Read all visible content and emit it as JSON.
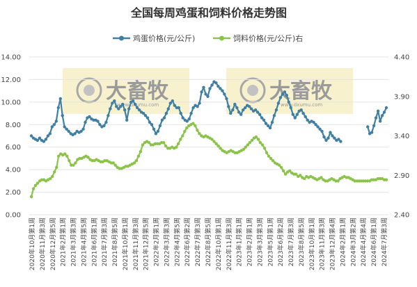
{
  "chart_data": {
    "type": "line",
    "title": "全国每周鸡蛋和饲料价格走势图",
    "left_axis": {
      "ylim": [
        0,
        14
      ],
      "ticks": [
        "0.00",
        "2.00",
        "4.00",
        "6.00",
        "8.00",
        "10.00",
        "12.00",
        "14.00"
      ]
    },
    "right_axis": {
      "ylim": [
        2.4,
        4.4
      ],
      "ticks": [
        "2.40",
        "2.90",
        "3.40",
        "3.90",
        "4.40"
      ]
    },
    "x_tick_labels": [
      "2020年10月第1周",
      "2020年11月第3周",
      "2020年12月第5周",
      "2021年2月第1周",
      "2021年3月第3周",
      "2021年4月第5周",
      "2021年6月第1周",
      "2021年7月第3周",
      "2021年8月第5周",
      "2021年10月第1周",
      "2021年11月第3周",
      "2021年12月第5周",
      "2022年2月第1周",
      "2022年3月第3周",
      "2022年4月第5周",
      "2022年6月第2周",
      "2022年7月第3周",
      "2022年8月第5周",
      "2022年10月第1周",
      "2022年11月第3周",
      "2023年1月第1周",
      "2023年2月第1周",
      "2023年3月第3周",
      "2023年5月第1周",
      "2023年6月第2周",
      "2023年7月第3周",
      "2023年8月第5周",
      "2023年10月第1周",
      "2023年11月第3周",
      "2023年12月第4周",
      "2024年2月第1周",
      "2024年3月第2周",
      "2024年4月第4周",
      "2024年6月第1周",
      "2024年7月第3周"
    ],
    "grid": true,
    "legend_position": "top",
    "series": [
      {
        "name": "鸡蛋价格(元/公斤)",
        "axis": "left",
        "color": "#3f7fa3",
        "values": [
          7.0,
          6.8,
          6.7,
          6.6,
          6.8,
          6.6,
          6.5,
          6.7,
          7.0,
          7.2,
          7.8,
          8.0,
          8.3,
          9.5,
          10.3,
          8.8,
          7.8,
          7.6,
          7.4,
          7.2,
          7.1,
          7.2,
          7.4,
          7.3,
          7.4,
          7.6,
          8.2,
          8.6,
          8.7,
          8.5,
          8.4,
          8.4,
          8.3,
          8.0,
          7.8,
          7.9,
          8.2,
          8.8,
          9.4,
          9.9,
          10.1,
          9.6,
          9.4,
          9.6,
          9.8,
          9.3,
          8.4,
          9.4,
          10.0,
          10.1,
          9.8,
          9.5,
          9.3,
          9.1,
          9.0,
          8.8,
          8.6,
          8.2,
          8.0,
          7.6,
          7.2,
          7.4,
          7.9,
          8.4,
          8.6,
          9.0,
          9.4,
          9.9,
          10.1,
          9.7,
          9.5,
          9.5,
          9.0,
          8.6,
          8.4,
          8.3,
          8.5,
          9.0,
          9.5,
          9.7,
          9.6,
          9.9,
          10.9,
          11.3,
          10.7,
          10.5,
          11.2,
          11.5,
          11.8,
          11.7,
          11.4,
          11.2,
          11.0,
          10.7,
          10.3,
          9.6,
          9.0,
          9.3,
          9.8,
          9.5,
          9.1,
          8.9,
          9.3,
          9.5,
          9.7,
          9.6,
          9.4,
          9.2,
          9.3,
          9.1,
          8.9,
          8.6,
          8.4,
          8.1,
          7.9,
          7.7,
          8.2,
          8.8,
          9.3,
          9.9,
          10.4,
          10.7,
          10.9,
          10.6,
          10.0,
          9.5,
          8.9,
          8.6,
          8.9,
          9.2,
          9.3,
          9.0,
          8.7,
          8.4,
          8.2,
          8.3,
          8.2,
          8.0,
          7.8,
          7.6,
          7.4,
          6.9,
          6.6,
          6.8,
          7.3,
          7.0,
          6.8,
          6.6,
          6.7,
          6.5,
          null,
          null,
          null,
          null,
          null,
          null,
          null,
          null,
          null,
          null,
          null,
          null,
          7.8,
          7.2,
          7.3,
          7.9,
          8.6,
          9.2,
          8.3,
          8.8,
          9.1,
          9.5
        ],
        "marker": "circle"
      },
      {
        "name": "饲料价格(元/公斤)右",
        "axis": "left",
        "color": "#8bc34a",
        "values": [
          1.6,
          2.3,
          2.6,
          2.8,
          3.0,
          3.1,
          3.1,
          3.0,
          3.1,
          3.2,
          3.4,
          3.8,
          4.2,
          5.2,
          5.4,
          5.3,
          5.4,
          5.2,
          4.8,
          4.4,
          4.4,
          4.6,
          4.9,
          5.0,
          5.0,
          5.1,
          5.2,
          5.1,
          4.9,
          4.8,
          4.8,
          4.9,
          4.8,
          4.7,
          4.7,
          4.8,
          4.8,
          4.7,
          4.6,
          4.6,
          4.4,
          4.2,
          4.1,
          4.1,
          4.2,
          4.3,
          4.3,
          4.4,
          4.5,
          4.6,
          4.8,
          5.2,
          5.6,
          6.2,
          6.4,
          6.5,
          6.4,
          6.2,
          6.2,
          6.3,
          6.3,
          6.3,
          6.4,
          6.4,
          6.1,
          5.9,
          5.9,
          6.0,
          5.9,
          6.0,
          6.3,
          6.7,
          7.0,
          7.4,
          7.7,
          7.9,
          8.0,
          8.1,
          7.9,
          7.5,
          7.2,
          7.0,
          6.9,
          7.0,
          6.9,
          6.8,
          6.7,
          6.5,
          6.3,
          6.1,
          5.9,
          5.7,
          5.6,
          5.5,
          5.6,
          5.7,
          5.6,
          5.5,
          5.5,
          5.6,
          5.7,
          5.8,
          6.0,
          6.2,
          6.4,
          6.6,
          6.8,
          6.9,
          6.7,
          6.4,
          6.2,
          5.9,
          5.5,
          5.2,
          5.0,
          4.8,
          4.6,
          4.5,
          4.4,
          4.2,
          3.9,
          3.6,
          3.8,
          3.9,
          3.7,
          3.6,
          3.6,
          3.4,
          3.5,
          3.3,
          3.2,
          3.4,
          3.3,
          3.4,
          3.3,
          3.2,
          3.1,
          3.2,
          3.3,
          3.1,
          3.0,
          3.0,
          3.1,
          3.2,
          3.1,
          3.0,
          3.0,
          3.2,
          3.3,
          3.4,
          3.3,
          3.3,
          3.2,
          3.1,
          3.0,
          3.0,
          3.0,
          3.0,
          3.0,
          3.0,
          3.0,
          3.0,
          3.1,
          3.1,
          3.1,
          3.2,
          3.2,
          3.2,
          3.1,
          3.1
        ],
        "marker": "circle"
      }
    ]
  },
  "watermark": {
    "text": "大畜牧",
    "sub": "www.dxumu.com"
  }
}
